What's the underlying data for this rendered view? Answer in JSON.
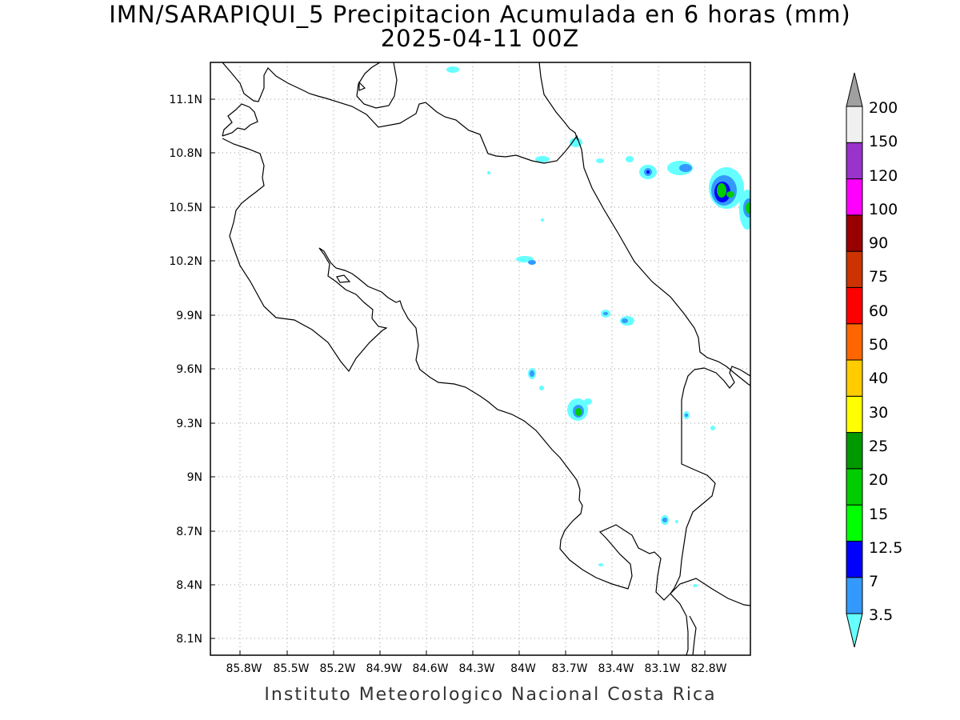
{
  "title": {
    "line1": "IMN/SARAPIQUI_5 Precipitacion Acumulada en 6 horas (mm)",
    "line2": "2025-04-11 00Z"
  },
  "footer": "Instituto Meteorologico Nacional Costa Rica",
  "map": {
    "lon_range": [
      -85.97,
      -82.7
    ],
    "lat_range": [
      8.01,
      11.3
    ],
    "x_ticks": [
      "85.8W",
      "85.5W",
      "85.2W",
      "84.9W",
      "84.6W",
      "84.3W",
      "84W",
      "83.7W",
      "83.4W",
      "83.1W",
      "82.8W"
    ],
    "y_ticks": [
      "11.1N",
      "10.8N",
      "10.5N",
      "10.2N",
      "9.9N",
      "9.6N",
      "9.3N",
      "9N",
      "8.7N",
      "8.4N",
      "8.1N"
    ],
    "grid": true
  },
  "colorbar": {
    "labels": [
      "3.5",
      "7",
      "12.5",
      "15",
      "20",
      "25",
      "30",
      "40",
      "50",
      "60",
      "75",
      "90",
      "100",
      "120",
      "150",
      "200"
    ],
    "colors": [
      "#66ffff",
      "#3399ff",
      "#0000ff",
      "#00ff00",
      "#00cc00",
      "#009900",
      "#ffff00",
      "#ffcc00",
      "#ff6600",
      "#ff0000",
      "#cc3300",
      "#990000",
      "#ff00ff",
      "#9933cc",
      "#f0f0f0",
      "#a0a0a0"
    ]
  }
}
